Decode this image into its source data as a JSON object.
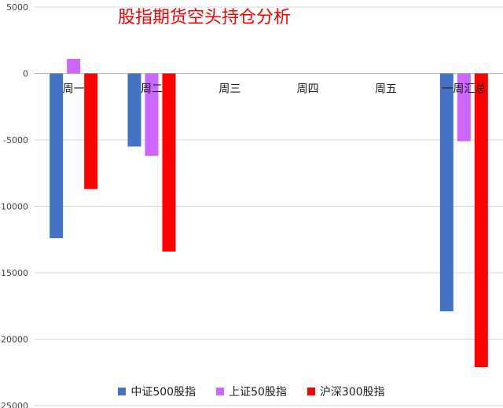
{
  "chart_data": {
    "type": "bar",
    "title": "股指期货空头持仓分析",
    "categories": [
      "周一",
      "周二",
      "周三",
      "周四",
      "周五",
      "一周汇总"
    ],
    "series": [
      {
        "name": "中证500股指",
        "color": "#4472c4",
        "values": [
          -12400,
          -5500,
          null,
          null,
          null,
          -17900
        ]
      },
      {
        "name": "上证50股指",
        "color": "#cc66ff",
        "values": [
          1100,
          -6200,
          null,
          null,
          null,
          -5100
        ]
      },
      {
        "name": "沪深300股指",
        "color": "#ff0000",
        "values": [
          -8700,
          -13400,
          null,
          null,
          null,
          -22100
        ]
      }
    ],
    "ylim": [
      -25000,
      5000
    ],
    "yticks": [
      "5000",
      "0",
      "-5000",
      "-10000",
      "-15000",
      "-20000",
      "-25000"
    ],
    "ytick_values": [
      5000,
      0,
      -5000,
      -10000,
      -15000,
      -20000,
      -25000
    ],
    "grid": true,
    "legend": "bottom",
    "xlabel": "",
    "ylabel": ""
  }
}
